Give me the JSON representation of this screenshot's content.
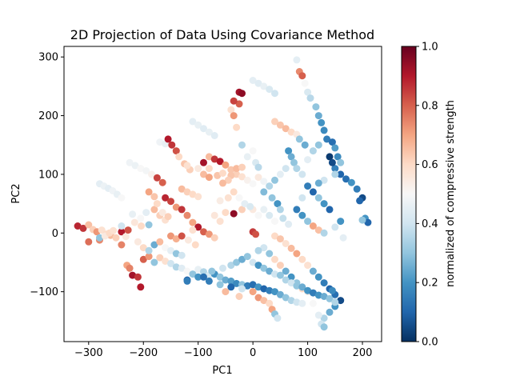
{
  "chart_data": {
    "type": "scatter",
    "title": "2D Projection of Data Using Covariance Method",
    "xlabel": "PC1",
    "ylabel": "PC2",
    "xlim": [
      -345,
      235
    ],
    "ylim": [
      -185,
      318
    ],
    "xticks": [
      -300,
      -200,
      -100,
      0,
      100,
      200
    ],
    "xtick_labels": [
      "−300",
      "−200",
      "−100",
      "0",
      "100",
      "200"
    ],
    "yticks": [
      -100,
      0,
      100,
      200,
      300
    ],
    "ytick_labels": [
      "−100",
      "0",
      "100",
      "200",
      "300"
    ],
    "grid": false,
    "colormap": "RdBu_r",
    "colorbar": {
      "label": "normalized of compressive strength",
      "range": [
        0.0,
        1.0
      ],
      "ticks": [
        0.0,
        0.2,
        0.4,
        0.6,
        0.8,
        1.0
      ],
      "tick_labels": [
        "0.0",
        "0.2",
        "0.4",
        "0.6",
        "0.8",
        "1.0"
      ]
    },
    "points": [
      [
        -320,
        12,
        0.88
      ],
      [
        -310,
        8,
        0.86
      ],
      [
        -300,
        14,
        0.65
      ],
      [
        -292,
        6,
        0.62
      ],
      [
        -285,
        2,
        0.72
      ],
      [
        -276,
        5,
        0.58
      ],
      [
        -268,
        -2,
        0.6
      ],
      [
        -260,
        -4,
        0.66
      ],
      [
        -250,
        -8,
        0.62
      ],
      [
        -240,
        2,
        0.9
      ],
      [
        -232,
        -6,
        0.55
      ],
      [
        -300,
        -15,
        0.78
      ],
      [
        -280,
        -12,
        0.74
      ],
      [
        -280,
        84,
        0.45
      ],
      [
        -272,
        80,
        0.47
      ],
      [
        -264,
        76,
        0.45
      ],
      [
        -256,
        72,
        0.48
      ],
      [
        -248,
        66,
        0.46
      ],
      [
        -240,
        60,
        0.5
      ],
      [
        -240,
        12,
        0.4
      ],
      [
        -228,
        5,
        0.82
      ],
      [
        -216,
        18,
        0.56
      ],
      [
        -204,
        12,
        0.6
      ],
      [
        -190,
        14,
        0.3
      ],
      [
        -220,
        32,
        0.46
      ],
      [
        -225,
        120,
        0.48
      ],
      [
        -215,
        115,
        0.47
      ],
      [
        -205,
        110,
        0.5
      ],
      [
        -195,
        106,
        0.49
      ],
      [
        -185,
        100,
        0.52
      ],
      [
        -175,
        94,
        0.84
      ],
      [
        -165,
        86,
        0.8
      ],
      [
        -160,
        60,
        0.88
      ],
      [
        -150,
        54,
        0.84
      ],
      [
        -140,
        44,
        0.72
      ],
      [
        -180,
        40,
        0.66
      ],
      [
        -170,
        30,
        0.62
      ],
      [
        -160,
        22,
        0.58
      ],
      [
        -130,
        40,
        0.86
      ],
      [
        -120,
        30,
        0.74
      ],
      [
        -110,
        18,
        0.7
      ],
      [
        -100,
        10,
        0.9
      ],
      [
        -90,
        2,
        0.8
      ],
      [
        -80,
        -2,
        0.72
      ],
      [
        -70,
        -8,
        0.62
      ],
      [
        -170,
        155,
        0.48
      ],
      [
        -160,
        152,
        0.46
      ],
      [
        -155,
        160,
        0.9
      ],
      [
        -148,
        150,
        0.86
      ],
      [
        -140,
        140,
        0.82
      ],
      [
        -135,
        130,
        0.6
      ],
      [
        -125,
        118,
        0.64
      ],
      [
        -115,
        108,
        0.62
      ],
      [
        -130,
        75,
        0.66
      ],
      [
        -120,
        70,
        0.62
      ],
      [
        -110,
        66,
        0.6
      ],
      [
        -100,
        62,
        0.58
      ],
      [
        -110,
        190,
        0.45
      ],
      [
        -100,
        184,
        0.46
      ],
      [
        -90,
        178,
        0.44
      ],
      [
        -80,
        172,
        0.46
      ],
      [
        -70,
        166,
        0.44
      ],
      [
        -80,
        130,
        0.66
      ],
      [
        -70,
        126,
        0.86
      ],
      [
        -60,
        122,
        0.9
      ],
      [
        -50,
        116,
        0.7
      ],
      [
        -40,
        108,
        0.64
      ],
      [
        -30,
        100,
        0.62
      ],
      [
        -20,
        96,
        0.58
      ],
      [
        -10,
        90,
        0.52
      ],
      [
        0,
        84,
        0.5
      ],
      [
        -90,
        120,
        0.92
      ],
      [
        -80,
        110,
        0.6
      ],
      [
        -90,
        100,
        0.66
      ],
      [
        -80,
        95,
        0.7
      ],
      [
        -65,
        98,
        0.64
      ],
      [
        -55,
        102,
        0.6
      ],
      [
        -40,
        98,
        0.64
      ],
      [
        -30,
        110,
        0.66
      ],
      [
        -20,
        112,
        0.62
      ],
      [
        -40,
        210,
        0.58
      ],
      [
        -35,
        200,
        0.72
      ],
      [
        -25,
        240,
        0.92
      ],
      [
        -20,
        238,
        0.95
      ],
      [
        -30,
        180,
        0.6
      ],
      [
        -20,
        150,
        0.35
      ],
      [
        -10,
        130,
        0.46
      ],
      [
        0,
        140,
        0.5
      ],
      [
        5,
        120,
        0.42
      ],
      [
        10,
        112,
        0.36
      ],
      [
        -25,
        220,
        0.8
      ],
      [
        -35,
        225,
        0.84
      ],
      [
        0,
        260,
        0.45
      ],
      [
        10,
        255,
        0.44
      ],
      [
        20,
        250,
        0.46
      ],
      [
        30,
        245,
        0.42
      ],
      [
        40,
        238,
        0.4
      ],
      [
        40,
        190,
        0.62
      ],
      [
        50,
        184,
        0.64
      ],
      [
        60,
        178,
        0.66
      ],
      [
        70,
        172,
        0.6
      ],
      [
        80,
        168,
        0.55
      ],
      [
        80,
        295,
        0.45
      ],
      [
        85,
        275,
        0.74
      ],
      [
        90,
        268,
        0.8
      ],
      [
        95,
        255,
        0.5
      ],
      [
        100,
        240,
        0.42
      ],
      [
        105,
        230,
        0.36
      ],
      [
        115,
        215,
        0.3
      ],
      [
        120,
        200,
        0.25
      ],
      [
        125,
        188,
        0.2
      ],
      [
        130,
        175,
        0.18
      ],
      [
        135,
        160,
        0.15
      ],
      [
        145,
        155,
        0.12
      ],
      [
        150,
        145,
        0.22
      ],
      [
        155,
        130,
        0.18
      ],
      [
        160,
        120,
        0.3
      ],
      [
        150,
        110,
        0.16
      ],
      [
        160,
        100,
        0.1
      ],
      [
        170,
        92,
        0.12
      ],
      [
        180,
        86,
        0.2
      ],
      [
        190,
        75,
        0.15
      ],
      [
        200,
        60,
        0.05
      ],
      [
        195,
        55,
        0.1
      ],
      [
        205,
        25,
        0.2
      ],
      [
        210,
        18,
        0.1
      ],
      [
        200,
        22,
        0.3
      ],
      [
        140,
        130,
        0.02
      ],
      [
        145,
        120,
        0.05
      ],
      [
        150,
        100,
        0.35
      ],
      [
        130,
        90,
        0.4
      ],
      [
        120,
        85,
        0.25
      ],
      [
        100,
        80,
        0.15
      ],
      [
        110,
        70,
        0.1
      ],
      [
        120,
        60,
        0.3
      ],
      [
        130,
        50,
        0.2
      ],
      [
        140,
        40,
        0.1
      ],
      [
        90,
        60,
        0.4
      ],
      [
        80,
        40,
        0.15
      ],
      [
        90,
        30,
        0.2
      ],
      [
        100,
        20,
        0.3
      ],
      [
        110,
        12,
        0.7
      ],
      [
        120,
        5,
        0.65
      ],
      [
        130,
        0,
        0.35
      ],
      [
        150,
        10,
        0.4
      ],
      [
        160,
        20,
        0.2
      ],
      [
        165,
        -8,
        0.45
      ],
      [
        60,
        110,
        0.4
      ],
      [
        50,
        100,
        0.45
      ],
      [
        40,
        90,
        0.3
      ],
      [
        30,
        80,
        0.35
      ],
      [
        20,
        70,
        0.28
      ],
      [
        10,
        95,
        0.55
      ],
      [
        20,
        88,
        0.48
      ],
      [
        35,
        60,
        0.3
      ],
      [
        45,
        50,
        0.2
      ],
      [
        50,
        40,
        0.35
      ],
      [
        40,
        20,
        0.5
      ],
      [
        30,
        30,
        0.42
      ],
      [
        20,
        40,
        0.46
      ],
      [
        55,
        25,
        0.38
      ],
      [
        65,
        15,
        0.44
      ],
      [
        -35,
        33,
        0.95
      ],
      [
        0,
        2,
        0.85
      ],
      [
        5,
        -2,
        0.82
      ],
      [
        -50,
        35,
        0.6
      ],
      [
        -20,
        40,
        0.62
      ],
      [
        0,
        40,
        0.55
      ],
      [
        10,
        30,
        0.5
      ],
      [
        -60,
        20,
        0.58
      ],
      [
        -70,
        30,
        0.56
      ],
      [
        -110,
        5,
        0.58
      ],
      [
        40,
        -5,
        0.6
      ],
      [
        50,
        -10,
        0.64
      ],
      [
        60,
        -18,
        0.58
      ],
      [
        70,
        -26,
        0.66
      ],
      [
        80,
        -35,
        0.7
      ],
      [
        90,
        -45,
        0.6
      ],
      [
        100,
        -55,
        0.58
      ],
      [
        110,
        -65,
        0.25
      ],
      [
        120,
        -75,
        0.2
      ],
      [
        130,
        -85,
        0.15
      ],
      [
        140,
        -95,
        0.1
      ],
      [
        150,
        -105,
        0.12
      ],
      [
        160,
        -115,
        0.05
      ],
      [
        150,
        -125,
        0.2
      ],
      [
        140,
        -135,
        0.25
      ],
      [
        130,
        -145,
        0.35
      ],
      [
        125,
        -155,
        0.4
      ],
      [
        130,
        -160,
        0.3
      ],
      [
        120,
        -140,
        0.45
      ],
      [
        110,
        -120,
        0.5
      ],
      [
        100,
        -100,
        0.55
      ],
      [
        90,
        -95,
        0.6
      ],
      [
        80,
        -85,
        0.3
      ],
      [
        70,
        -75,
        0.2
      ],
      [
        60,
        -65,
        0.25
      ],
      [
        50,
        -55,
        0.62
      ],
      [
        40,
        -45,
        0.6
      ],
      [
        30,
        -35,
        0.3
      ],
      [
        20,
        -25,
        0.4
      ],
      [
        10,
        -30,
        0.35
      ],
      [
        -200,
        -45,
        0.8
      ],
      [
        -190,
        -40,
        0.72
      ],
      [
        -180,
        -50,
        0.3
      ],
      [
        -170,
        -42,
        0.62
      ],
      [
        -160,
        -48,
        0.58
      ],
      [
        -150,
        -52,
        0.4
      ],
      [
        -140,
        -58,
        0.35
      ],
      [
        -130,
        -60,
        0.44
      ],
      [
        -120,
        -65,
        0.5
      ],
      [
        -110,
        -70,
        0.3
      ],
      [
        -100,
        -62,
        0.46
      ],
      [
        -90,
        -66,
        0.35
      ],
      [
        -80,
        -72,
        0.42
      ],
      [
        -70,
        -70,
        0.2
      ],
      [
        -60,
        -75,
        0.3
      ],
      [
        -50,
        -80,
        0.25
      ],
      [
        -40,
        -82,
        0.22
      ],
      [
        -30,
        -86,
        0.18
      ],
      [
        -20,
        -88,
        0.3
      ],
      [
        -10,
        -90,
        0.15
      ],
      [
        0,
        -88,
        0.12
      ],
      [
        10,
        -92,
        0.2
      ],
      [
        20,
        -95,
        0.1
      ],
      [
        30,
        -98,
        0.15
      ],
      [
        40,
        -100,
        0.2
      ],
      [
        50,
        -105,
        0.25
      ],
      [
        60,
        -110,
        0.3
      ],
      [
        70,
        -115,
        0.35
      ],
      [
        80,
        -118,
        0.4
      ],
      [
        90,
        -120,
        0.45
      ],
      [
        -120,
        -80,
        0.1
      ],
      [
        -100,
        -75,
        0.2
      ],
      [
        -80,
        -82,
        0.15
      ],
      [
        -60,
        -88,
        0.3
      ],
      [
        -40,
        -92,
        0.1
      ],
      [
        -20,
        -95,
        0.4
      ],
      [
        0,
        -100,
        0.7
      ],
      [
        10,
        -110,
        0.72
      ],
      [
        20,
        -115,
        0.65
      ],
      [
        30,
        -120,
        0.6
      ],
      [
        35,
        -130,
        0.7
      ],
      [
        40,
        -138,
        0.3
      ],
      [
        45,
        -145,
        0.4
      ],
      [
        -50,
        -100,
        0.66
      ],
      [
        -25,
        -108,
        0.62
      ],
      [
        -230,
        -55,
        0.7
      ],
      [
        -225,
        -60,
        0.75
      ],
      [
        -220,
        -72,
        0.92
      ],
      [
        -210,
        -75,
        0.86
      ],
      [
        -205,
        -92,
        0.9
      ],
      [
        -240,
        -20,
        0.75
      ],
      [
        -210,
        -15,
        0.55
      ],
      [
        -200,
        -25,
        0.6
      ],
      [
        -190,
        -30,
        0.35
      ],
      [
        -180,
        -20,
        0.25
      ],
      [
        -170,
        -15,
        0.66
      ],
      [
        -160,
        -25,
        0.5
      ],
      [
        -150,
        -30,
        0.45
      ],
      [
        -140,
        -35,
        0.3
      ],
      [
        -130,
        -38,
        0.4
      ],
      [
        -120,
        -82,
        0.15
      ],
      [
        -90,
        -75,
        0.12
      ],
      [
        -75,
        -65,
        0.3
      ],
      [
        -55,
        -60,
        0.4
      ],
      [
        -40,
        -55,
        0.35
      ],
      [
        -30,
        -50,
        0.3
      ],
      [
        -20,
        -45,
        0.25
      ],
      [
        -10,
        -40,
        0.3
      ],
      [
        0,
        -50,
        0.4
      ],
      [
        10,
        -55,
        0.2
      ],
      [
        20,
        -60,
        0.3
      ],
      [
        30,
        -65,
        0.25
      ],
      [
        40,
        -70,
        0.4
      ],
      [
        50,
        -72,
        0.3
      ],
      [
        60,
        -80,
        0.35
      ],
      [
        70,
        -85,
        0.4
      ],
      [
        80,
        -90,
        0.3
      ],
      [
        90,
        -92,
        0.25
      ],
      [
        100,
        -98,
        0.2
      ],
      [
        110,
        -102,
        0.15
      ],
      [
        120,
        -106,
        0.2
      ],
      [
        130,
        -108,
        0.25
      ],
      [
        140,
        -112,
        0.3
      ],
      [
        150,
        -118,
        0.35
      ],
      [
        145,
        -98,
        0.18
      ],
      [
        -150,
        -5,
        0.72
      ],
      [
        -140,
        -10,
        0.68
      ],
      [
        -130,
        -5,
        0.82
      ],
      [
        -118,
        -12,
        0.55
      ],
      [
        -105,
        -20,
        0.6
      ],
      [
        -190,
        70,
        0.7
      ],
      [
        -180,
        62,
        0.64
      ],
      [
        -175,
        50,
        0.6
      ],
      [
        -165,
        35,
        0.55
      ],
      [
        -155,
        28,
        0.62
      ],
      [
        -280,
        -8,
        0.3
      ],
      [
        -270,
        -5,
        0.55
      ],
      [
        -262,
        0,
        0.6
      ],
      [
        -255,
        4,
        0.58
      ],
      [
        -205,
        25,
        0.5
      ],
      [
        -195,
        35,
        0.45
      ],
      [
        -100,
        110,
        0.55
      ],
      [
        -120,
        115,
        0.58
      ],
      [
        -45,
        90,
        0.62
      ],
      [
        -55,
        85,
        0.66
      ],
      [
        -35,
        70,
        0.6
      ],
      [
        -25,
        60,
        0.5
      ],
      [
        -15,
        50,
        0.45
      ],
      [
        -5,
        45,
        0.42
      ],
      [
        -45,
        60,
        0.58
      ],
      [
        -60,
        55,
        0.54
      ],
      [
        65,
        140,
        0.2
      ],
      [
        70,
        130,
        0.25
      ],
      [
        75,
        120,
        0.3
      ],
      [
        80,
        110,
        0.35
      ],
      [
        90,
        100,
        0.4
      ],
      [
        100,
        125,
        0.45
      ],
      [
        110,
        140,
        0.35
      ],
      [
        120,
        150,
        0.3
      ],
      [
        95,
        150,
        0.25
      ],
      [
        85,
        160,
        0.3
      ]
    ]
  }
}
